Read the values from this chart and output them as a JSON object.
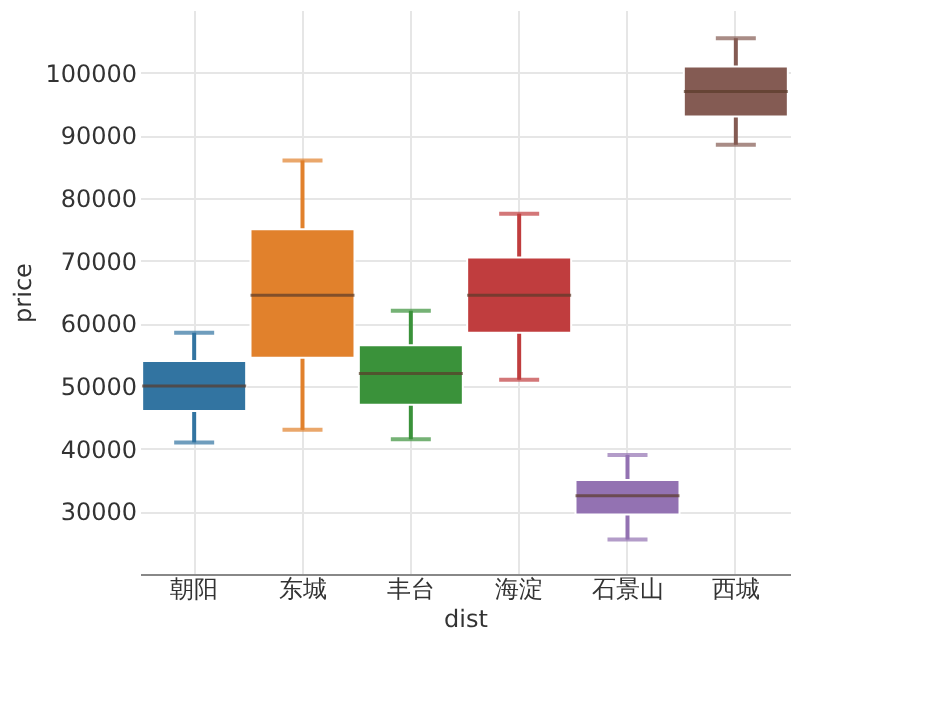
{
  "chart_data": {
    "type": "box",
    "xlabel": "dist",
    "ylabel": "price",
    "categories": [
      "朝阳",
      "东城",
      "丰台",
      "海淀",
      "石景山",
      "西城"
    ],
    "colors": [
      "#3274a1",
      "#e1812c",
      "#3a923a",
      "#c03d3e",
      "#9372b2",
      "#845b53"
    ],
    "boxes": [
      {
        "low": 41000,
        "q1": 46000,
        "median": 50000,
        "q3": 54000,
        "high": 58500
      },
      {
        "low": 43000,
        "q1": 54500,
        "median": 64500,
        "q3": 75000,
        "high": 86000
      },
      {
        "low": 41500,
        "q1": 47000,
        "median": 52000,
        "q3": 56500,
        "high": 62000
      },
      {
        "low": 51000,
        "q1": 58500,
        "median": 64500,
        "q3": 70500,
        "high": 77500
      },
      {
        "low": 25500,
        "q1": 29500,
        "median": 32500,
        "q3": 35000,
        "high": 39000
      },
      {
        "low": 88500,
        "q1": 93000,
        "median": 97000,
        "q3": 101000,
        "high": 105500
      }
    ],
    "ylim": [
      20000,
      110000
    ],
    "yticks": [
      30000,
      40000,
      50000,
      60000,
      70000,
      80000,
      90000,
      100000
    ],
    "grid": true
  }
}
